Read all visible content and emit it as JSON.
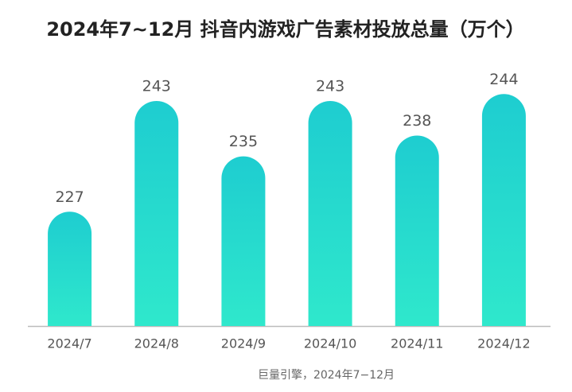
{
  "chart_data": {
    "type": "bar",
    "title": "2024年7~12月 抖音内游戏广告素材投放总量（万个）",
    "categories": [
      "2024/7",
      "2024/8",
      "2024/9",
      "2024/10",
      "2024/11",
      "2024/12"
    ],
    "values": [
      227,
      243,
      235,
      243,
      238,
      244
    ],
    "color": "#1fd3cf",
    "ylim": [
      210.5,
      250
    ],
    "source": "巨量引擎，2024年7−12月"
  }
}
